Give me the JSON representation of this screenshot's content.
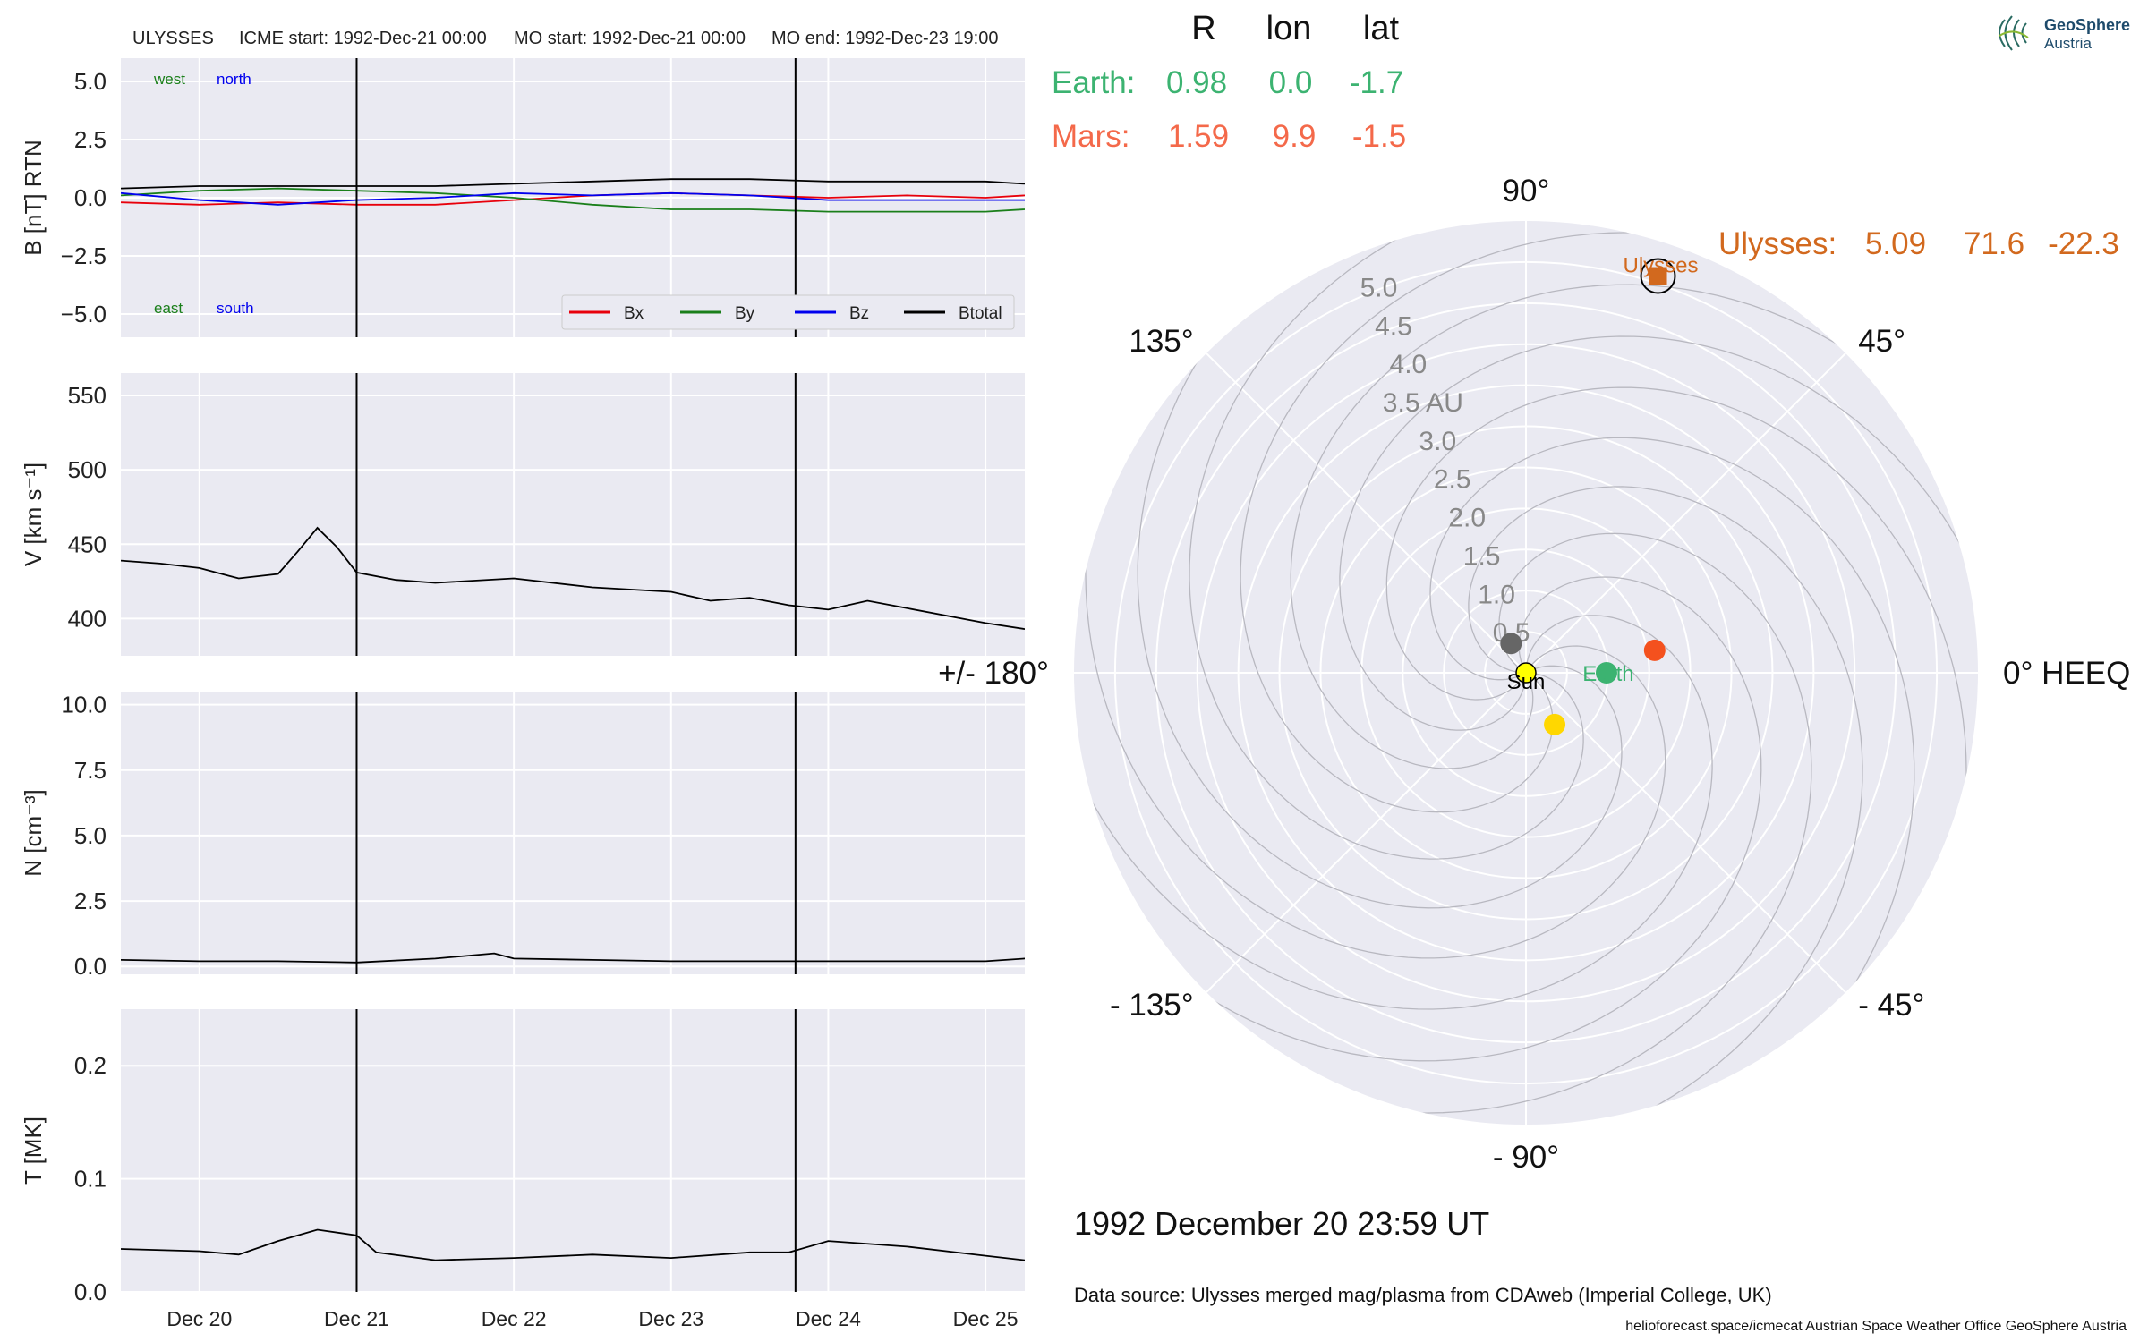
{
  "header": {
    "spacecraft": "ULYSSES",
    "icme_start": "ICME start: 1992-Dec-21 00:00",
    "mo_start": "MO start: 1992-Dec-21 00:00",
    "mo_end": "MO end: 1992-Dec-23 19:00"
  },
  "logo": {
    "name": "GeoSphere",
    "sub": "Austria"
  },
  "positions_table": {
    "headers": [
      "R",
      "lon",
      "lat"
    ],
    "rows": [
      {
        "name": "Earth:",
        "R": "0.98",
        "lon": "0.0",
        "lat": "-1.7",
        "color": "#3cb371"
      },
      {
        "name": "Mars:",
        "R": "1.59",
        "lon": "9.9",
        "lat": "-1.5",
        "color": "#f4694a"
      }
    ],
    "spacecraft_row": {
      "name": "Ulysses:",
      "R": "5.09",
      "lon": "71.6",
      "lat": "-22.3",
      "color": "#d2691e"
    }
  },
  "date_label": "1992 December 20  23:59 UT",
  "data_source": "Data source: Ulysses merged mag/plasma from CDAweb (Imperial College, UK)",
  "footer": "helioforecast.space/icmecat   Austrian Space Weather Office   GeoSphere Austria",
  "colors": {
    "panel_bg": "#eaeaf2",
    "grid": "#ffffff",
    "bx": "#e8000b",
    "by": "#1a7f1a",
    "bz": "#0000ee",
    "btotal": "#000000",
    "earth": "#3cb371",
    "mars": "#f4511e",
    "ulysses": "#d2691e",
    "sun": "#ffff00",
    "venus": "#ffd700",
    "mercury": "#666666"
  },
  "chart_data": [
    {
      "type": "line",
      "panel": "magnetic_field",
      "ylabel": "B [nT] RTN",
      "ylim": [
        -6,
        6
      ],
      "yticks": [
        5.0,
        2.5,
        0.0,
        -2.5,
        -5.0
      ],
      "ytick_labels": [
        "5.0",
        "2.5",
        "0.0",
        "−2.5",
        "−5.0"
      ],
      "xlim_days": "1992-12-19 12:00 to 1992-12-25 06:00",
      "xticks": [
        "Dec 20",
        "Dec 21",
        "Dec 22",
        "Dec 23",
        "Dec 24",
        "Dec 25"
      ],
      "annotations": [
        {
          "text": "west",
          "color": "#1a7f1a",
          "pos": "top-left"
        },
        {
          "text": "north",
          "color": "#0000ee",
          "pos": "top-left"
        },
        {
          "text": "east",
          "color": "#1a7f1a",
          "pos": "bottom-left"
        },
        {
          "text": "south",
          "color": "#0000ee",
          "pos": "bottom-left"
        }
      ],
      "legend": {
        "placement": "lower-right",
        "entries": [
          "Bx",
          "By",
          "Bz",
          "Btotal"
        ]
      },
      "series": [
        {
          "name": "Bx",
          "color": "#e8000b",
          "x": [
            "1992-12-19 12:00",
            "1992-12-20 00:00",
            "1992-12-20 12:00",
            "1992-12-21 00:00",
            "1992-12-21 12:00",
            "1992-12-22 00:00",
            "1992-12-22 12:00",
            "1992-12-23 00:00",
            "1992-12-23 12:00",
            "1992-12-24 00:00",
            "1992-12-24 12:00",
            "1992-12-25 00:00",
            "1992-12-25 06:00"
          ],
          "values": [
            -0.2,
            -0.3,
            -0.2,
            -0.3,
            -0.3,
            -0.1,
            0.1,
            0.2,
            0.1,
            0.0,
            0.1,
            0.0,
            0.1
          ]
        },
        {
          "name": "By",
          "color": "#1a7f1a",
          "x": [
            "1992-12-19 12:00",
            "1992-12-20 00:00",
            "1992-12-20 12:00",
            "1992-12-21 00:00",
            "1992-12-21 12:00",
            "1992-12-22 00:00",
            "1992-12-22 12:00",
            "1992-12-23 00:00",
            "1992-12-23 12:00",
            "1992-12-24 00:00",
            "1992-12-24 12:00",
            "1992-12-25 00:00",
            "1992-12-25 06:00"
          ],
          "values": [
            0.1,
            0.3,
            0.4,
            0.3,
            0.2,
            0.0,
            -0.3,
            -0.5,
            -0.5,
            -0.6,
            -0.6,
            -0.6,
            -0.5
          ]
        },
        {
          "name": "Bz",
          "color": "#0000ee",
          "x": [
            "1992-12-19 12:00",
            "1992-12-20 00:00",
            "1992-12-20 12:00",
            "1992-12-21 00:00",
            "1992-12-21 12:00",
            "1992-12-22 00:00",
            "1992-12-22 12:00",
            "1992-12-23 00:00",
            "1992-12-23 12:00",
            "1992-12-24 00:00",
            "1992-12-24 12:00",
            "1992-12-25 00:00",
            "1992-12-25 06:00"
          ],
          "values": [
            0.2,
            -0.1,
            -0.3,
            -0.1,
            0.0,
            0.2,
            0.1,
            0.2,
            0.1,
            -0.1,
            -0.1,
            -0.1,
            -0.1
          ]
        },
        {
          "name": "Btotal",
          "color": "#000000",
          "x": [
            "1992-12-19 12:00",
            "1992-12-20 00:00",
            "1992-12-20 12:00",
            "1992-12-21 00:00",
            "1992-12-21 12:00",
            "1992-12-22 00:00",
            "1992-12-22 12:00",
            "1992-12-23 00:00",
            "1992-12-23 12:00",
            "1992-12-24 00:00",
            "1992-12-24 12:00",
            "1992-12-25 00:00",
            "1992-12-25 06:00"
          ],
          "values": [
            0.4,
            0.5,
            0.5,
            0.5,
            0.5,
            0.6,
            0.7,
            0.8,
            0.8,
            0.7,
            0.7,
            0.7,
            0.6
          ]
        }
      ]
    },
    {
      "type": "line",
      "panel": "speed",
      "ylabel": "V [km s⁻¹]",
      "ylim": [
        375,
        565
      ],
      "yticks": [
        550,
        500,
        450,
        400
      ],
      "ytick_labels": [
        "550",
        "500",
        "450",
        "400"
      ],
      "series": [
        {
          "name": "V",
          "color": "#000000",
          "x": [
            "1992-12-19 12:00",
            "1992-12-19 18:00",
            "1992-12-20 00:00",
            "1992-12-20 06:00",
            "1992-12-20 12:00",
            "1992-12-20 15:00",
            "1992-12-20 18:00",
            "1992-12-20 21:00",
            "1992-12-21 00:00",
            "1992-12-21 06:00",
            "1992-12-21 12:00",
            "1992-12-22 00:00",
            "1992-12-22 12:00",
            "1992-12-23 00:00",
            "1992-12-23 06:00",
            "1992-12-23 12:00",
            "1992-12-23 18:00",
            "1992-12-24 00:00",
            "1992-12-24 06:00",
            "1992-12-24 12:00",
            "1992-12-25 00:00",
            "1992-12-25 06:00"
          ],
          "values": [
            439,
            437,
            434,
            427,
            430,
            445,
            461,
            448,
            431,
            426,
            424,
            427,
            421,
            418,
            412,
            414,
            409,
            406,
            412,
            407,
            397,
            393
          ]
        }
      ]
    },
    {
      "type": "line",
      "panel": "density",
      "ylabel": "N [cm⁻³]",
      "ylim": [
        -0.3,
        10.5
      ],
      "yticks": [
        10.0,
        7.5,
        5.0,
        2.5,
        0.0
      ],
      "ytick_labels": [
        "10.0",
        "7.5",
        "5.0",
        "2.5",
        "0.0"
      ],
      "series": [
        {
          "name": "N",
          "color": "#000000",
          "x": [
            "1992-12-19 12:00",
            "1992-12-20 00:00",
            "1992-12-20 12:00",
            "1992-12-21 00:00",
            "1992-12-21 12:00",
            "1992-12-21 21:00",
            "1992-12-22 00:00",
            "1992-12-22 12:00",
            "1992-12-23 00:00",
            "1992-12-23 12:00",
            "1992-12-24 00:00",
            "1992-12-24 12:00",
            "1992-12-25 00:00",
            "1992-12-25 06:00"
          ],
          "values": [
            0.25,
            0.2,
            0.2,
            0.15,
            0.3,
            0.5,
            0.3,
            0.25,
            0.2,
            0.2,
            0.2,
            0.2,
            0.2,
            0.3
          ]
        }
      ]
    },
    {
      "type": "line",
      "panel": "temperature",
      "ylabel": "T [MK]",
      "ylim": [
        0.0,
        0.25
      ],
      "yticks": [
        0.2,
        0.1,
        0.0
      ],
      "ytick_labels": [
        "0.2",
        "0.1",
        "0.0"
      ],
      "series": [
        {
          "name": "T",
          "color": "#000000",
          "x": [
            "1992-12-19 12:00",
            "1992-12-20 00:00",
            "1992-12-20 06:00",
            "1992-12-20 12:00",
            "1992-12-20 18:00",
            "1992-12-21 00:00",
            "1992-12-21 03:00",
            "1992-12-21 12:00",
            "1992-12-22 00:00",
            "1992-12-22 12:00",
            "1992-12-23 00:00",
            "1992-12-23 12:00",
            "1992-12-23 18:00",
            "1992-12-24 00:00",
            "1992-12-24 12:00",
            "1992-12-25 00:00",
            "1992-12-25 06:00"
          ],
          "values": [
            0.038,
            0.036,
            0.033,
            0.045,
            0.055,
            0.05,
            0.035,
            0.028,
            0.03,
            0.033,
            0.03,
            0.035,
            0.035,
            0.045,
            0.04,
            0.032,
            0.028
          ]
        }
      ]
    },
    {
      "type": "scatter",
      "panel": "polar_positions",
      "angle_labels": [
        "90°",
        "45°",
        "0° HEEQ",
        "- 45°",
        "- 90°",
        "- 135°",
        "+/- 180°",
        "135°"
      ],
      "angle_values": [
        90,
        45,
        0,
        -45,
        -90,
        -135,
        180,
        135
      ],
      "radial_labels": [
        "0.5",
        "1.0",
        "1.5",
        "2.0",
        "2.5",
        "3.0",
        "3.5 AU",
        "4.0",
        "4.5",
        "5.0"
      ],
      "radial_values": [
        0.5,
        1.0,
        1.5,
        2.0,
        2.5,
        3.0,
        3.5,
        4.0,
        4.5,
        5.0
      ],
      "rlim": [
        0,
        5.5
      ],
      "points": [
        {
          "name": "Sun",
          "r": 0.0,
          "lon": 0.0,
          "color": "#ffff00",
          "label": "Sun"
        },
        {
          "name": "Earth",
          "r": 0.98,
          "lon": 0.0,
          "color": "#3cb371",
          "label": "Earth"
        },
        {
          "name": "Mars",
          "r": 1.59,
          "lon": 9.9,
          "color": "#f4511e",
          "label": ""
        },
        {
          "name": "Venus",
          "r": 0.72,
          "lon": -61.0,
          "color": "#ffd700",
          "label": ""
        },
        {
          "name": "Mercury",
          "r": 0.4,
          "lon": 117.0,
          "color": "#666666",
          "label": ""
        },
        {
          "name": "Ulysses",
          "r": 5.09,
          "lon": 71.6,
          "color": "#d2691e",
          "label": "Ulysses"
        }
      ]
    }
  ]
}
